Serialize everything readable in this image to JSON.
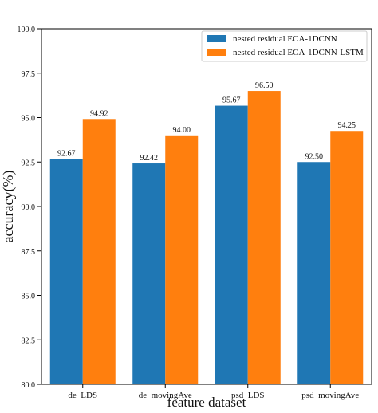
{
  "chart_data": {
    "type": "bar",
    "title": "",
    "xlabel": "feature dataset",
    "ylabel": "accuracy(%)",
    "ylim": [
      80.0,
      100.0
    ],
    "yticks": [
      "80.0",
      "82.5",
      "85.0",
      "87.5",
      "90.0",
      "92.5",
      "95.0",
      "97.5",
      "100.0"
    ],
    "categories": [
      "de_LDS",
      "de_movingAve",
      "psd_LDS",
      "psd_movingAve"
    ],
    "series": [
      {
        "name": "nested residual ECA-1DCNN",
        "color": "#1f77b4",
        "values": [
          92.67,
          92.42,
          95.67,
          92.5
        ],
        "labels": [
          "92.67",
          "92.42",
          "95.67",
          "92.50"
        ]
      },
      {
        "name": "nested residual ECA-1DCNN-LSTM",
        "color": "#ff7f0e",
        "values": [
          94.92,
          94.0,
          96.5,
          94.25
        ],
        "labels": [
          "94.92",
          "94.00",
          "96.50",
          "94.25"
        ]
      }
    ],
    "grid": false,
    "legend_position": "top-right"
  }
}
